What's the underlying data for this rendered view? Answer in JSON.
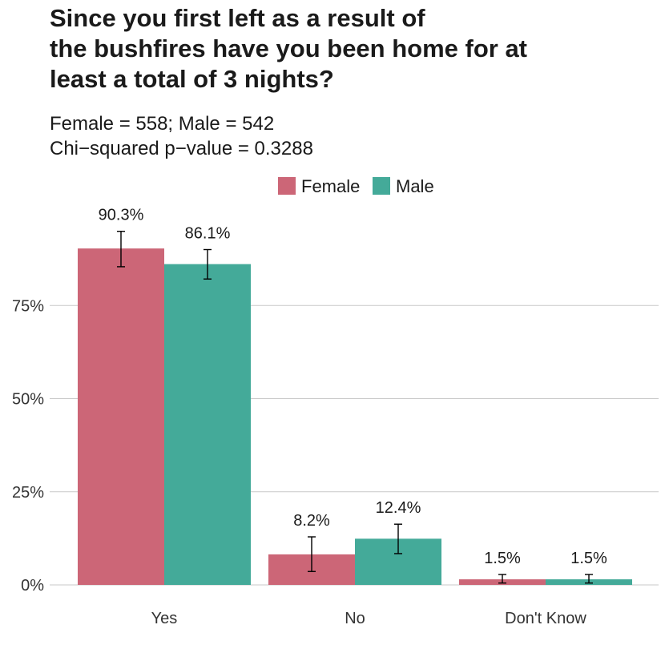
{
  "title_lines": [
    "Since you first left as a result of",
    "the bushfires have you been home for at",
    "least a total of 3 nights?"
  ],
  "subtitle_lines": [
    "Female = 558; Male = 542",
    "Chi−squared p−value = 0.3288"
  ],
  "chart_data": {
    "type": "bar",
    "title": "Since you first left as a result of the bushfires have you been home for at least a total of 3 nights?",
    "subtitle": "Female = 558; Male = 542 | Chi−squared p−value = 0.3288",
    "categories": [
      "Yes",
      "No",
      "Don't Know"
    ],
    "series": [
      {
        "name": "Female",
        "color": "#cc6677",
        "values": [
          90.3,
          8.2,
          1.5
        ],
        "labels": [
          "90.3%",
          "8.2%",
          "1.5%"
        ],
        "error_low": [
          85.4,
          3.6,
          0.5
        ],
        "error_high": [
          94.9,
          12.9,
          2.8
        ]
      },
      {
        "name": "Male",
        "color": "#44aa99",
        "values": [
          86.1,
          12.4,
          1.5
        ],
        "labels": [
          "86.1%",
          "12.4%",
          "1.5%"
        ],
        "error_low": [
          82.1,
          8.4,
          0.5
        ],
        "error_high": [
          90.0,
          16.3,
          2.8
        ]
      }
    ],
    "yticks": [
      0,
      25,
      50,
      75
    ],
    "ytick_labels": [
      "0%",
      "25%",
      "50%",
      "75%"
    ],
    "ylim": [
      0,
      100
    ],
    "xlabel": "",
    "ylabel": "",
    "legend_position": "top",
    "grid": "horizontal"
  }
}
